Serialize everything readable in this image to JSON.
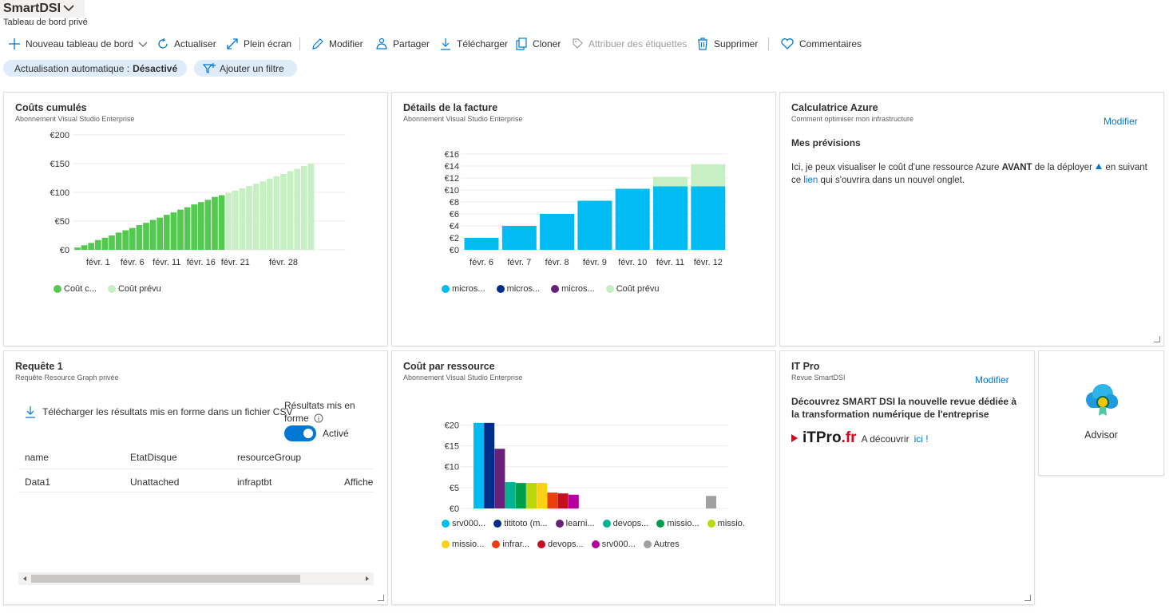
{
  "header": {
    "title": "SmartDSI",
    "subtitle": "Tableau de bord privé"
  },
  "toolbar": {
    "new_dashboard": "Nouveau tableau de bord",
    "refresh": "Actualiser",
    "fullscreen": "Plein écran",
    "edit": "Modifier",
    "share": "Partager",
    "download": "Télécharger",
    "clone": "Cloner",
    "assign_tags": "Attribuer des étiquettes",
    "delete": "Supprimer",
    "feedback": "Commentaires"
  },
  "filters": {
    "auto_refresh_label": "Actualisation automatique :",
    "auto_refresh_value": "Désactivé",
    "add_filter": "Ajouter un filtre"
  },
  "tiles": {
    "cumulative": {
      "title": "Coûts cumulés",
      "subtitle": "Abonnement Visual Studio Enterprise",
      "legend": [
        "Coût c...",
        "Coût prévu"
      ]
    },
    "invoice": {
      "title": "Détails de la facture",
      "subtitle": "Abonnement Visual Studio Enterprise",
      "legend": [
        "micros...",
        "micros...",
        "micros...",
        "Coût prévu"
      ]
    },
    "calculator": {
      "title": "Calculatrice Azure",
      "subtitle": "Comment optimiser mon infrastructure",
      "edit": "Modifier",
      "heading": "Mes prévisions",
      "text_1": "Ici, je peux visualiser le coût d'une ressource Azure",
      "text_bold": "AVANT",
      "text_2": "de la déployer",
      "text_3": "en suivant",
      "text_4": "ce",
      "link": "lien",
      "text_5": "qui s'ouvrira dans un nouvel onglet."
    },
    "query": {
      "title": "Requête 1",
      "subtitle": "Requête Resource Graph privée",
      "download": "Télécharger les résultats mis en forme dans un fichier CSV",
      "formatted_results_1": "Résultats mis en",
      "formatted_results_2": "forme",
      "toggle_label": "Activé",
      "columns": [
        "name",
        "EtatDisque",
        "resourceGroup"
      ],
      "row": [
        "Data1",
        "Unattached",
        "infraptbt"
      ],
      "row_link": "Affiche"
    },
    "resource_cost": {
      "title": "Coût par ressource",
      "subtitle": "Abonnement Visual Studio Enterprise",
      "legend_row1": [
        "srv000...",
        "tititoto (m...",
        "learni...",
        "devops...",
        "missio...",
        "missio."
      ],
      "legend_row2": [
        "missio...",
        "infrar...",
        "devops...",
        "srv000...",
        "Autres"
      ]
    },
    "itpro": {
      "title": "IT Pro",
      "subtitle": "Revue SmartDSI",
      "edit": "Modifier",
      "headline": "Découvrez SMART DSI la nouvelle revue dédiée à la transformation numérique de l'entreprise",
      "brand_prefix": "iTPro",
      "brand_suffix": ".fr",
      "discover": "A découvrir",
      "discover_link": "ici !"
    },
    "advisor": {
      "label": "Advisor"
    }
  },
  "chart_data": [
    {
      "type": "bar",
      "title": "Coûts cumulés",
      "ylim": [
        0,
        200
      ],
      "y_ticks": [
        "€0",
        "€50",
        "€100",
        "€150",
        "€200"
      ],
      "x_ticks": [
        "févr. 1",
        "févr. 6",
        "févr. 11",
        "févr. 16",
        "févr. 21",
        "févr. 28"
      ],
      "series": [
        {
          "name": "Coût c...",
          "color": "#54c950",
          "values": [
            4,
            8,
            12,
            17,
            21,
            25,
            30,
            34,
            38,
            43,
            47,
            52,
            56,
            61,
            65,
            70,
            74,
            79,
            83,
            87,
            92,
            95
          ]
        },
        {
          "name": "Coût prévu",
          "color": "#c6efc4",
          "values": [
            99,
            103,
            107,
            111,
            115,
            119,
            124,
            128,
            132,
            137,
            141,
            146,
            150
          ]
        }
      ]
    },
    {
      "type": "bar",
      "title": "Détails de la facture",
      "ylim": [
        0,
        16
      ],
      "y_ticks": [
        "€0",
        "€2",
        "€4",
        "€6",
        "€8",
        "€10",
        "€12",
        "€14",
        "€16"
      ],
      "categories": [
        "févr. 6",
        "févr. 7",
        "févr. 8",
        "févr. 9",
        "févr. 10",
        "févr. 11",
        "févr. 12"
      ],
      "series": [
        {
          "name": "micros...",
          "color": "#00bcf2",
          "values": [
            2,
            4,
            6,
            8.2,
            10.2,
            10.6,
            10.6
          ]
        },
        {
          "name": "Coût prévu",
          "color": "#c6efc4",
          "values": [
            0,
            0,
            0,
            0,
            0,
            1.6,
            3.7
          ]
        }
      ],
      "legend_colors": [
        "#00bcf2",
        "#002d8c",
        "#68217a",
        "#c6efc4"
      ]
    },
    {
      "type": "bar",
      "title": "Coût par ressource",
      "ylim": [
        0,
        22
      ],
      "y_ticks": [
        "€0",
        "€5",
        "€10",
        "€15",
        "€20"
      ],
      "series": [
        {
          "name": "srv000...",
          "color": "#00bcf2",
          "value": 20.5
        },
        {
          "name": "tititoto (m...",
          "color": "#002d8c",
          "value": 20.5
        },
        {
          "name": "learni...",
          "color": "#68217a",
          "value": 14.3
        },
        {
          "name": "devops...",
          "color": "#00b294",
          "value": 6.3
        },
        {
          "name": "missio...",
          "color": "#009e49",
          "value": 6.1
        },
        {
          "name": "missio.",
          "color": "#bad80a",
          "value": 6.1
        },
        {
          "name": "missio...",
          "color": "#fcd116",
          "value": 6.1
        },
        {
          "name": "infrar...",
          "color": "#e8400c",
          "value": 3.8
        },
        {
          "name": "devops...",
          "color": "#c50f1f",
          "value": 3.6
        },
        {
          "name": "srv000...",
          "color": "#b4009e",
          "value": 3.3
        },
        {
          "name": "Autres",
          "color": "#a0a0a0",
          "value": 3.0
        }
      ]
    }
  ]
}
